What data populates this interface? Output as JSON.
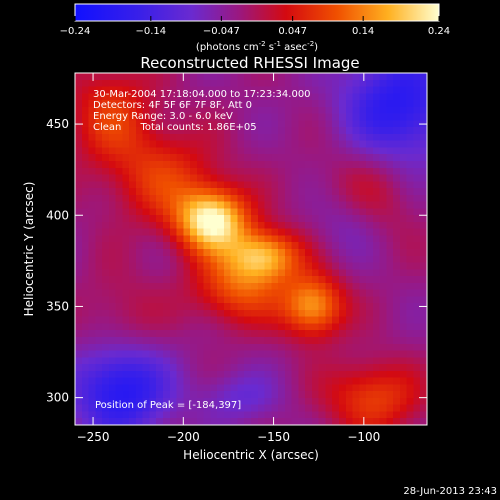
{
  "chart_data": {
    "type": "heatmap",
    "title": "Reconstructed RHESSI Image",
    "xlabel": "Heliocentric X (arcsec)",
    "ylabel": "Heliocentric Y (arcsec)",
    "xlim": [
      -260,
      -65
    ],
    "ylim": [
      285,
      478
    ],
    "xticks": [
      -250,
      -200,
      -150,
      -100
    ],
    "yticks": [
      300,
      350,
      400,
      450
    ],
    "colorbar": {
      "range": [
        -0.24,
        0.24
      ],
      "ticks": [
        "-0.24",
        "-0.14",
        "-0.047",
        "0.047",
        "0.14",
        "0.24"
      ],
      "unit_text": "(photons cm",
      "unit_exp1": "-2",
      "unit_mid": " s",
      "unit_exp2": "-1",
      "unit_mid2": " asec",
      "unit_exp3": "-2",
      "unit_end": ")"
    },
    "info_lines": [
      "30-Mar-2004 17:18:04.000 to 17:23:34.000",
      "Detectors: 4F 5F 6F 7F 8F, Att 0",
      "Energy Range: 3.0 - 6.0 keV",
      "Clean      Total counts: 1.86E+05"
    ],
    "peak_text": "Position of Peak = [-184,397]",
    "peak": {
      "x": -184,
      "y": 397,
      "value": 0.24
    },
    "sources": [
      {
        "x": -184,
        "y": 397,
        "amp": 0.26,
        "sx": 14,
        "sy": 12
      },
      {
        "x": -155,
        "y": 378,
        "amp": 0.19,
        "sx": 14,
        "sy": 10
      },
      {
        "x": -128,
        "y": 350,
        "amp": 0.19,
        "sx": 12,
        "sy": 12
      },
      {
        "x": -170,
        "y": 360,
        "amp": 0.13,
        "sx": 18,
        "sy": 14
      },
      {
        "x": -210,
        "y": 420,
        "amp": 0.1,
        "sx": 22,
        "sy": 18
      },
      {
        "x": -95,
        "y": 300,
        "amp": 0.12,
        "sx": 18,
        "sy": 14
      },
      {
        "x": -240,
        "y": 455,
        "amp": 0.1,
        "sx": 18,
        "sy": 20
      },
      {
        "x": -100,
        "y": 410,
        "amp": 0.06,
        "sx": 20,
        "sy": 20
      },
      {
        "x": -235,
        "y": 340,
        "amp": 0.05,
        "sx": 16,
        "sy": 20
      },
      {
        "x": -80,
        "y": 460,
        "amp": -0.16,
        "sx": 22,
        "sy": 22
      },
      {
        "x": -235,
        "y": 305,
        "amp": -0.18,
        "sx": 18,
        "sy": 18
      },
      {
        "x": -110,
        "y": 395,
        "amp": -0.06,
        "sx": 14,
        "sy": 14
      },
      {
        "x": -170,
        "y": 300,
        "amp": -0.06,
        "sx": 16,
        "sy": 10
      }
    ]
  },
  "footer": {
    "timestamp": "28-Jun-2013 23:43"
  }
}
